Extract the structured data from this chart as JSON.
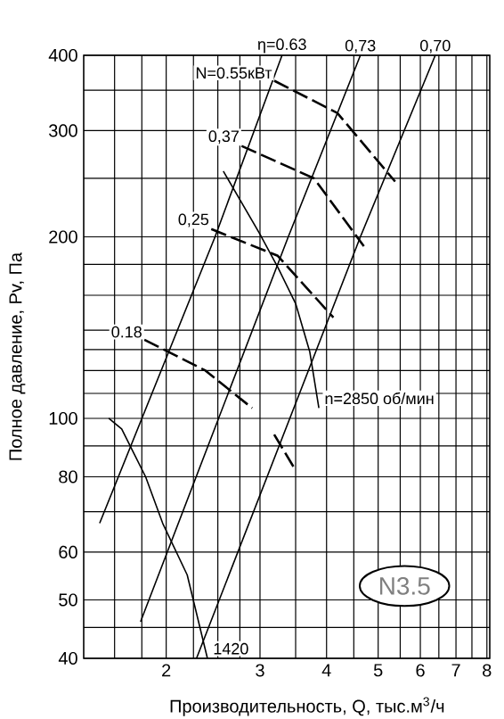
{
  "chart_data": {
    "type": "line",
    "xlabel": "Производительность, Q, тыс.м$^{3}$/ч",
    "ylabel": "Полное давление, Pv, Па",
    "log": "xy",
    "grid": true,
    "marker": "none",
    "line_style": "solid",
    "xlim": [
      1.4,
      8.1
    ],
    "ylim": [
      40,
      400
    ],
    "xticks": [
      {
        "value": 1.6,
        "label": null
      },
      {
        "value": 1.8,
        "label": null
      },
      2,
      {
        "value": 2.25,
        "label": null
      },
      {
        "value": 2.5,
        "label": null
      },
      {
        "value": 2.75,
        "label": null
      },
      3,
      {
        "value": 3.5,
        "label": null
      },
      4,
      {
        "value": 4.5,
        "label": null
      },
      5,
      {
        "value": 5.5,
        "label": null
      },
      6,
      {
        "value": 6.5,
        "label": null
      },
      7,
      {
        "value": 7.5,
        "label": null
      },
      8
    ],
    "yticks": [
      40,
      {
        "value": 45,
        "label": null
      },
      50,
      60,
      {
        "value": 70,
        "label": null
      },
      80,
      {
        "value": 90,
        "label": null
      },
      100,
      {
        "value": 110,
        "label": null
      },
      {
        "value": 120,
        "label": null
      },
      {
        "value": 130,
        "label": null
      },
      {
        "value": 140,
        "label": null
      },
      {
        "value": 160,
        "label": null
      },
      {
        "value": 180,
        "label": null
      },
      200,
      {
        "value": 250,
        "label": null
      },
      300,
      {
        "value": 350,
        "label": null
      },
      400
    ],
    "series": [
      {
        "name": "η=0.63",
        "color": "#000000",
        "x": [
          1.5,
          2.47,
          3.3
        ],
        "values": [
          67,
          200,
          400
        ]
      },
      {
        "name": "0,73",
        "color": "#000000",
        "x": [
          1.79,
          3.39,
          4.63
        ],
        "values": [
          46,
          200,
          400
        ]
      },
      {
        "name": "0,70",
        "color": "#000000",
        "x": [
          2.28,
          4.63,
          6.4
        ],
        "values": [
          40,
          200,
          400
        ]
      },
      {
        "name": "n=2850 об/мин",
        "color": "#000000",
        "x": [
          2.56,
          3.0,
          3.24,
          3.5,
          3.72,
          3.87
        ],
        "values": [
          257,
          202,
          178,
          155,
          129,
          104
        ]
      },
      {
        "name": "1420",
        "color": "#000000",
        "x": [
          1.56,
          1.65,
          1.83,
          1.97,
          2.19,
          2.39
        ],
        "values": [
          100,
          96,
          80,
          67,
          55,
          40
        ]
      },
      {
        "name": "N=0.55кВт",
        "color": "#000000",
        "line_style": "dashed",
        "x": [
          3.19,
          4.19,
          5.38
        ],
        "values": [
          363,
          321,
          247
        ]
      },
      {
        "name": "0,37",
        "color": "#000000",
        "line_style": "dashed",
        "x": [
          2.77,
          3.79,
          4.7
        ],
        "values": [
          283,
          250,
          193
        ]
      },
      {
        "name": "0,25",
        "color": "#000000",
        "line_style": "dashed",
        "x": [
          2.43,
          3.24,
          4.12
        ],
        "values": [
          206,
          186,
          147
        ]
      },
      {
        "name": "0.18",
        "color": "#000000",
        "line_style": "dashed",
        "x": [
          1.82,
          2.37,
          2.9
        ],
        "values": [
          135,
          120,
          104
        ]
      },
      {
        "color": "#000000",
        "line_style": "dashed",
        "x": [
          3.19,
          3.5
        ],
        "values": [
          94,
          82
        ]
      }
    ],
    "annotations": [
      "N3.5"
    ]
  }
}
